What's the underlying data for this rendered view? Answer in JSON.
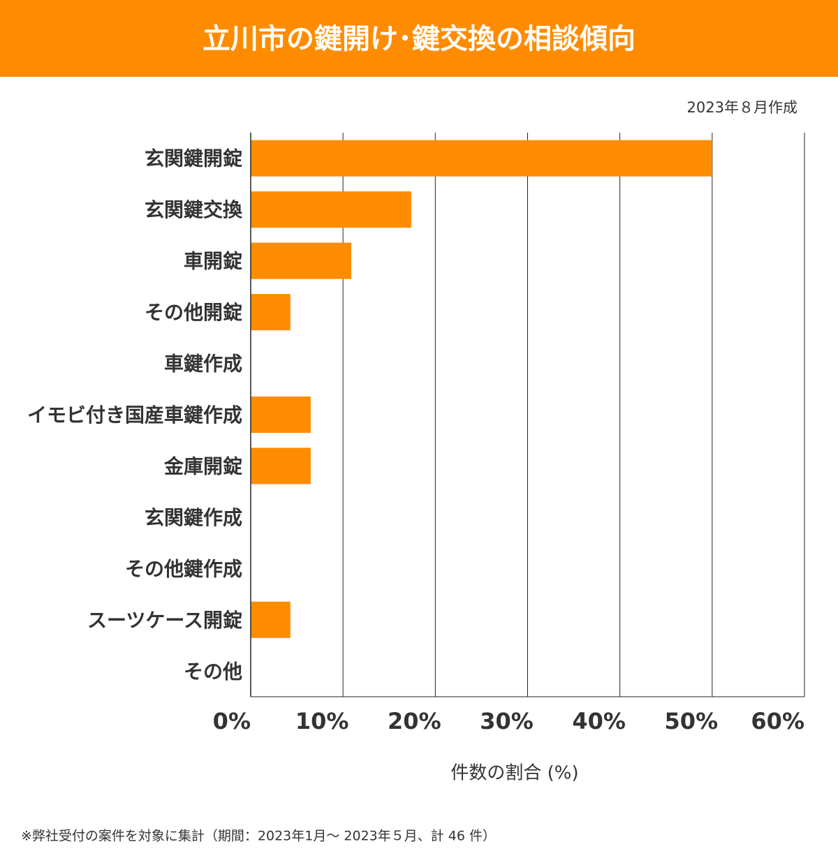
{
  "chart_data": {
    "type": "bar",
    "orientation": "horizontal",
    "title": "立川市の鍵開け･鍵交換の相談傾向",
    "subtitle": "2023年８月作成",
    "x_label": "件数の割合 (%)",
    "footnote": "※弊社受付の案件を対象に集計（期間：2023年1月～ 2023年５月、計 46 件）",
    "categories": [
      "玄関鍵開錠",
      "玄関鍵交換",
      "車開錠",
      "その他開錠",
      "車鍵作成",
      "イモビ付き国産車鍵作成",
      "金庫開錠",
      "玄関鍵作成",
      "その他鍵作成",
      "スーツケース開錠",
      "その他"
    ],
    "values": [
      50,
      17.4,
      10.9,
      4.3,
      0,
      6.5,
      6.5,
      0,
      0,
      4.3,
      0
    ],
    "color": "#ff8c00",
    "xlim": [
      0,
      60
    ],
    "xticks": [
      {
        "value": 0,
        "label": "0%"
      },
      {
        "value": 10,
        "label": "10%"
      },
      {
        "value": 20,
        "label": "20%"
      },
      {
        "value": 30,
        "label": "30%"
      },
      {
        "value": 40,
        "label": "40%"
      },
      {
        "value": 50,
        "label": "50%"
      },
      {
        "value": 60,
        "label": "60%"
      }
    ],
    "grid": true
  }
}
